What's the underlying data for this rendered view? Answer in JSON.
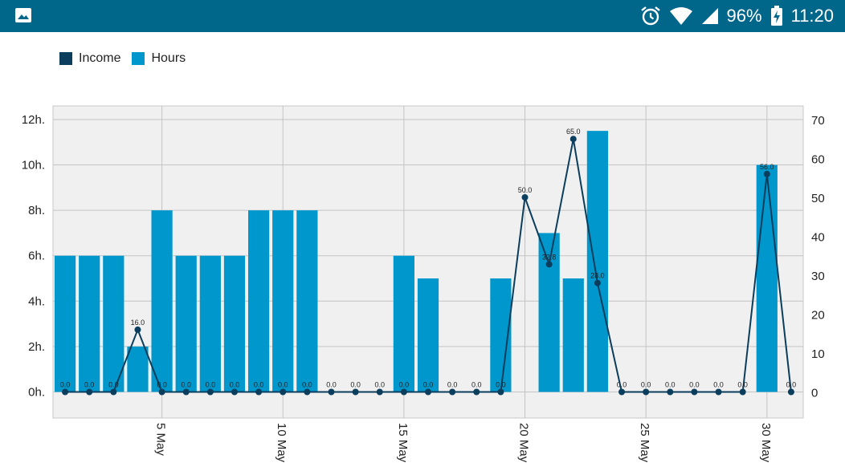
{
  "status_bar": {
    "battery_percent": "96%",
    "time": "11:20",
    "icons": [
      "image-icon",
      "alarm-icon",
      "wifi-icon",
      "signal-icon",
      "battery-charging-icon"
    ]
  },
  "chart_data": {
    "type": "bar+line",
    "title": "",
    "legend": [
      "Income",
      "Hours"
    ],
    "legend_position": "top-left",
    "x_days": [
      1,
      2,
      3,
      4,
      5,
      6,
      7,
      8,
      9,
      10,
      11,
      12,
      13,
      14,
      15,
      16,
      17,
      18,
      19,
      20,
      21,
      22,
      23,
      24,
      25,
      26,
      27,
      28,
      29,
      30,
      31
    ],
    "x_tick_labels": [
      "5 May",
      "10 May",
      "15 May",
      "20 May",
      "25 May",
      "30 May"
    ],
    "x_tick_days": [
      5,
      10,
      15,
      20,
      25,
      30
    ],
    "grid": true,
    "series": [
      {
        "name": "Hours",
        "type": "bar",
        "axis": "left",
        "color": "#0098cc",
        "values": [
          6,
          6,
          6,
          2,
          8,
          6,
          6,
          6,
          8,
          8,
          8,
          0,
          0,
          0,
          6,
          5,
          0,
          0,
          5,
          0,
          7,
          5,
          11.5,
          0,
          0,
          0,
          0,
          0,
          0,
          10,
          0
        ]
      },
      {
        "name": "Income",
        "type": "line",
        "axis": "right",
        "color": "#0b3d5c",
        "values": [
          0,
          0,
          0,
          16,
          0,
          0,
          0,
          0,
          0,
          0,
          0,
          0,
          0,
          0,
          0,
          0,
          0,
          0,
          0,
          50,
          32.8,
          65,
          28,
          0,
          0,
          0,
          0,
          0,
          0,
          56,
          0
        ],
        "labels": [
          "0.0",
          "0.0",
          "0.0",
          "16.0",
          "0.0",
          "0.0",
          "0.0",
          "0.0",
          "0.0",
          "0.0",
          "0.0",
          "0.0",
          "0.0",
          "0.0",
          "0.0",
          "0.0",
          "0.0",
          "0.0",
          "0.0",
          "50.0",
          "32.8",
          "65.0",
          "28.0",
          "0.0",
          "0.0",
          "0.0",
          "0.0",
          "0.0",
          "0.0",
          "56.0",
          "0.0"
        ]
      }
    ],
    "y_left": {
      "ticks": [
        "0h.",
        "2h.",
        "4h.",
        "6h.",
        "8h.",
        "10h.",
        "12h."
      ],
      "tick_values": [
        0,
        2,
        4,
        6,
        8,
        10,
        12
      ],
      "range": [
        -1.15,
        12.6
      ]
    },
    "y_right": {
      "ticks": [
        "0",
        "10",
        "20",
        "30",
        "40",
        "50",
        "60",
        "70"
      ],
      "tick_values": [
        0,
        10,
        20,
        30,
        40,
        50,
        60,
        70
      ],
      "range": [
        -6.7,
        73.5
      ]
    }
  }
}
